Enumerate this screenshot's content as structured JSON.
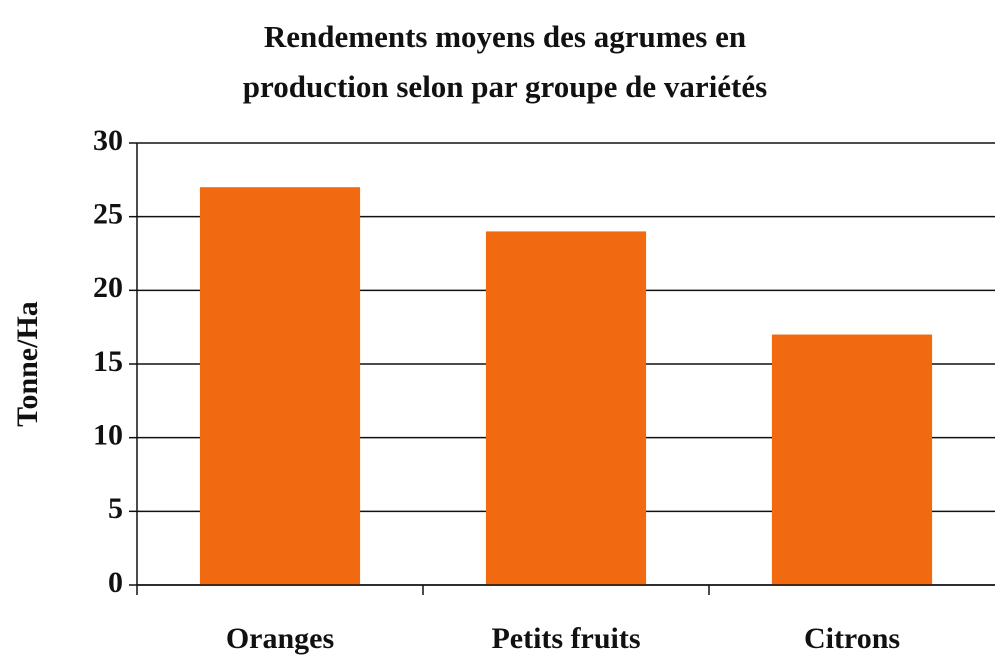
{
  "chart_data": {
    "type": "bar",
    "title": [
      "Rendements moyens des agrumes en",
      "production selon par groupe de variétés"
    ],
    "y_label": "Tonne/Ha",
    "categories": [
      "Oranges",
      "Petits fruits",
      "Citrons"
    ],
    "values": [
      27,
      24,
      17
    ],
    "color": "#f26a10",
    "ylim": [
      0,
      30
    ],
    "yticks": [
      0,
      5,
      10,
      15,
      20,
      25,
      30
    ],
    "grid": true
  }
}
